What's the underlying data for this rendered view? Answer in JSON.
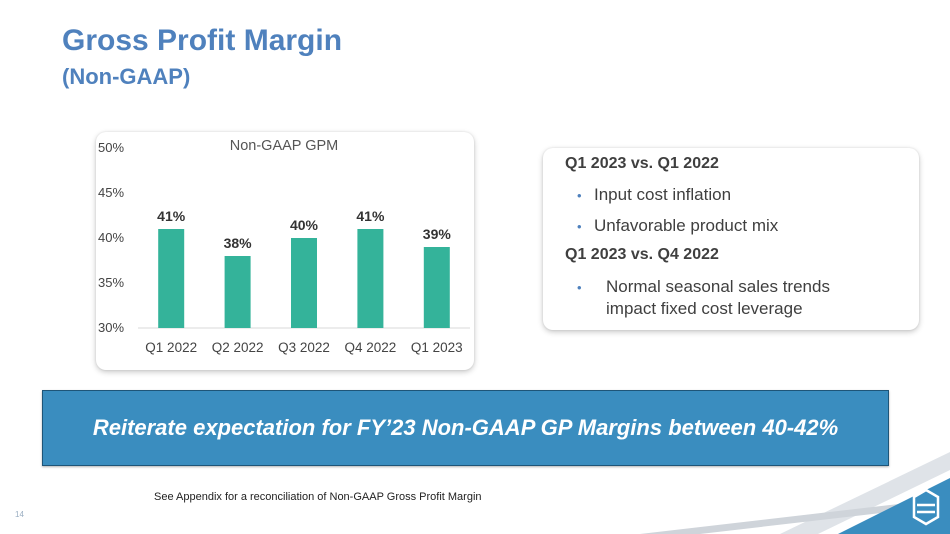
{
  "slide": {
    "title": "Gross Profit Margin",
    "subtitle": "(Non-GAAP)",
    "footnote": "See Appendix for a reconciliation of Non-GAAP Gross Profit Margin",
    "page_number": "14"
  },
  "chart_data": {
    "type": "bar",
    "title": "Non-GAAP GPM",
    "categories": [
      "Q1 2022",
      "Q2 2022",
      "Q3 2022",
      "Q4 2022",
      "Q1 2023"
    ],
    "values": [
      41,
      38,
      40,
      41,
      39
    ],
    "data_labels": [
      "41%",
      "38%",
      "40%",
      "41%",
      "39%"
    ],
    "ylim": [
      30,
      50
    ],
    "yticks": [
      30,
      35,
      40,
      45,
      50
    ],
    "ytick_labels": [
      "30%",
      "35%",
      "40%",
      "45%",
      "50%"
    ],
    "xlabel": "",
    "ylabel": "",
    "grid": false,
    "bar_color": "#34b39a"
  },
  "callout": {
    "heading1": "Q1 2023 vs. Q1 2022",
    "bullets1": [
      "Input cost inflation",
      "Unfavorable product mix"
    ],
    "heading2": "Q1 2023 vs. Q4 2022",
    "bullet2_line1": "Normal seasonal sales trends",
    "bullet2_line2": "impact fixed cost leverage",
    "bullet_symbol": "•"
  },
  "banner": {
    "text": "Reiterate expectation for FY’23 Non-GAAP GP Margins between 40-42%"
  },
  "colors": {
    "title": "#4f81bd",
    "banner": "#3a8dbf",
    "bars": "#34b39a"
  },
  "icons": {
    "logo": "company-logo-icon",
    "corner": "corner-stripes-decoration"
  }
}
